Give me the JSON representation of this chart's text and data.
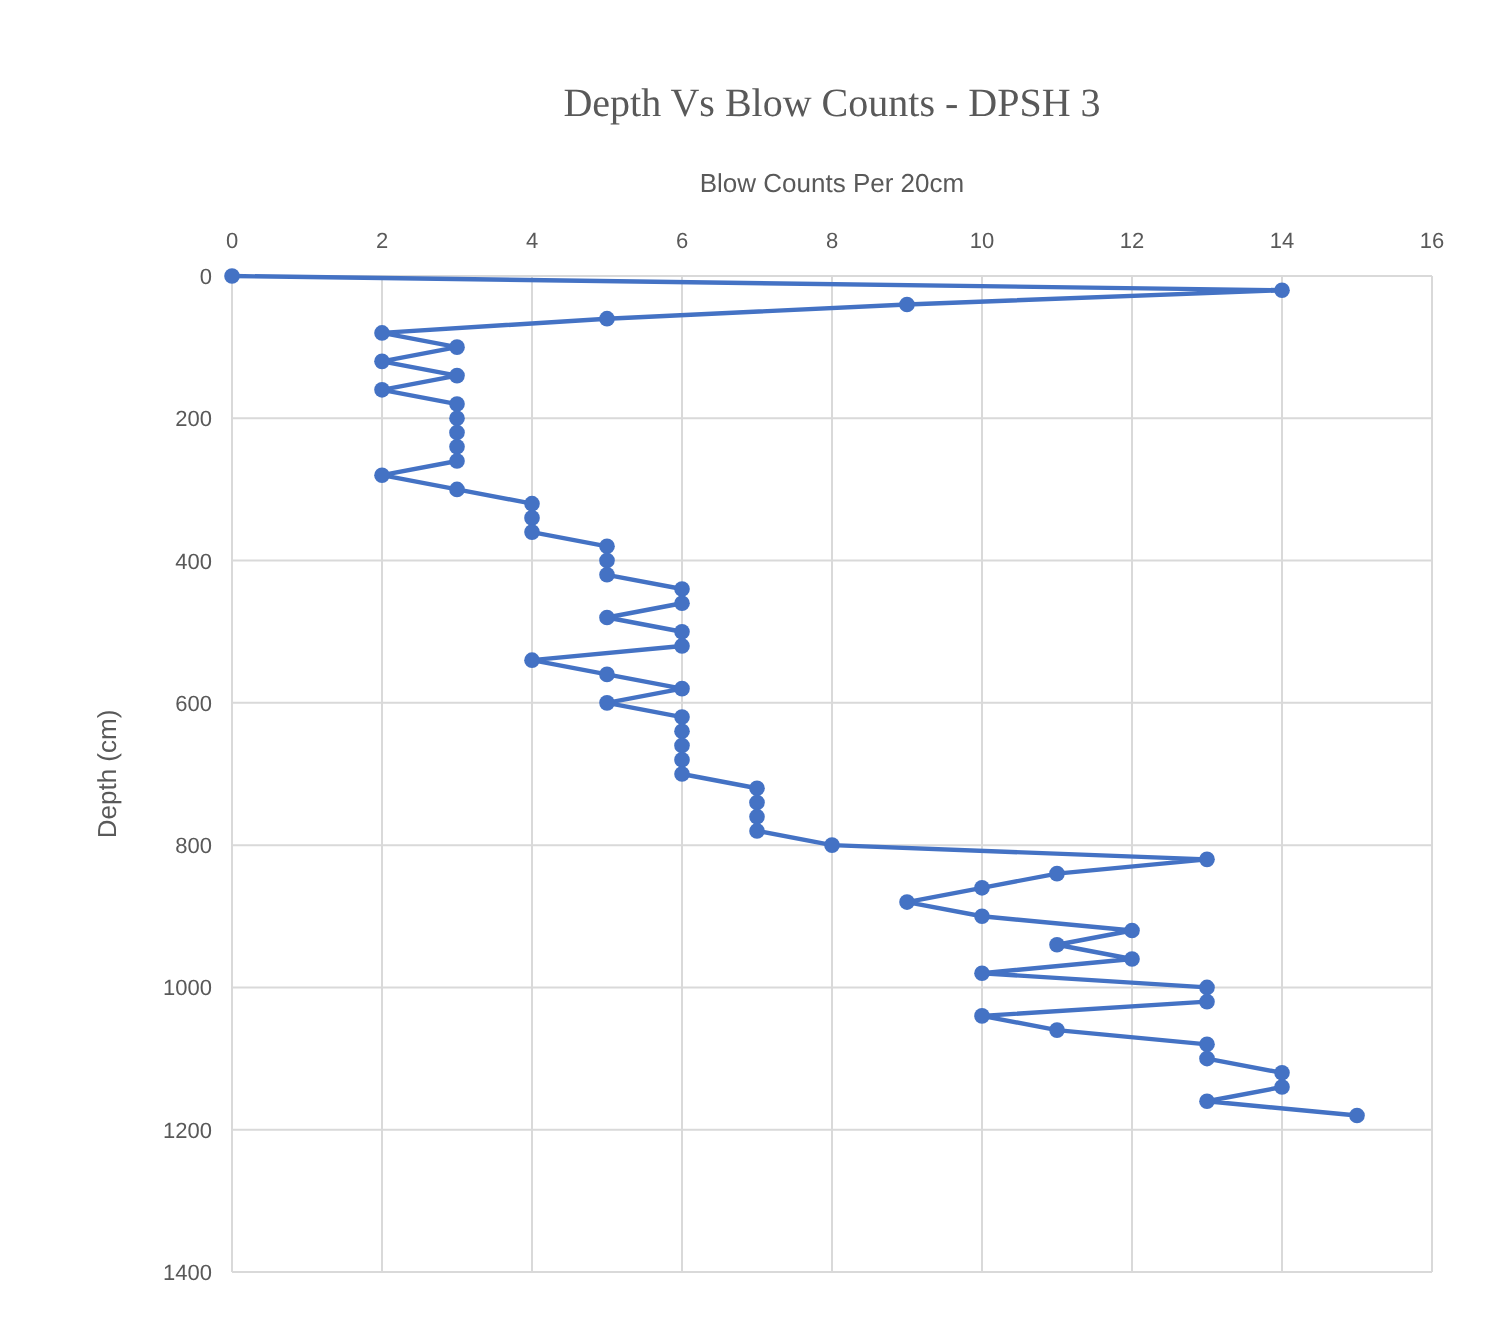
{
  "chart_data": {
    "type": "line",
    "title": "Depth Vs Blow Counts - DPSH 3",
    "xlabel": "Blow Counts Per 20cm",
    "ylabel": "Depth (cm)",
    "xlim": [
      0,
      16
    ],
    "xticks": [
      0,
      2,
      4,
      6,
      8,
      10,
      12,
      14,
      16
    ],
    "ylim": [
      1400,
      0
    ],
    "yticks": [
      0,
      200,
      400,
      600,
      800,
      1000,
      1200,
      1400
    ],
    "grid": true,
    "marker": "circle",
    "series": [
      {
        "color": "#4472c4",
        "x": [
          0,
          14,
          9,
          5,
          2,
          3,
          2,
          3,
          2,
          3,
          3,
          3,
          3,
          3,
          2,
          3,
          4,
          4,
          4,
          5,
          5,
          5,
          6,
          6,
          5,
          6,
          6,
          4,
          5,
          6,
          5,
          6,
          6,
          6,
          6,
          6,
          7,
          7,
          7,
          7,
          8,
          13,
          11,
          10,
          9,
          10,
          12,
          11,
          12,
          10,
          13,
          13,
          10,
          11,
          13,
          13,
          14,
          14,
          13,
          15
        ],
        "values": [
          0,
          20,
          40,
          60,
          80,
          100,
          120,
          140,
          160,
          180,
          200,
          220,
          240,
          260,
          280,
          300,
          320,
          340,
          360,
          380,
          400,
          420,
          440,
          460,
          480,
          500,
          520,
          540,
          560,
          580,
          600,
          620,
          640,
          660,
          680,
          700,
          720,
          740,
          760,
          780,
          800,
          820,
          840,
          860,
          880,
          900,
          920,
          940,
          960,
          980,
          1000,
          1020,
          1040,
          1060,
          1080,
          1100,
          1120,
          1140,
          1160,
          1180
        ]
      }
    ]
  }
}
